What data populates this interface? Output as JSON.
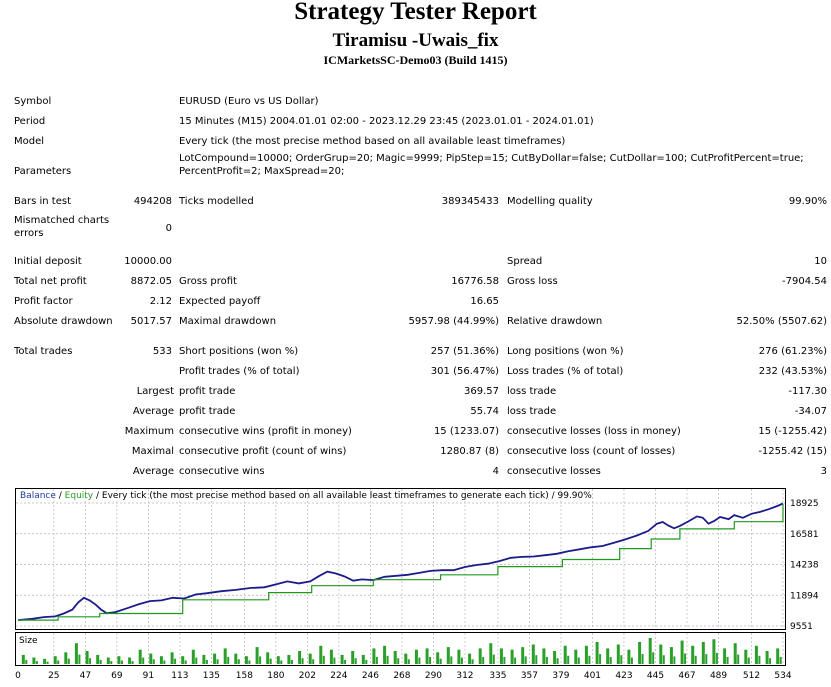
{
  "report": {
    "title": "Strategy Tester Report",
    "ea_name": "Tiramisu -Uwais_fix",
    "server": "ICMarketsSC-Demo03 (Build 1415)"
  },
  "summary": {
    "symbol": {
      "label": "Symbol",
      "value": "EURUSD (Euro vs US Dollar)"
    },
    "period": {
      "label": "Period",
      "value": "15 Minutes (M15) 2004.01.01 02:00 - 2023.12.29 23:45 (2023.01.01 - 2024.01.01)"
    },
    "model": {
      "label": "Model",
      "value": "Every tick (the most precise method based on all available least timeframes)"
    },
    "parameters": {
      "label": "Parameters",
      "line1": "LotCompound=10000; OrderGrup=20; Magic=9999; PipStep=15; CutByDollar=false; CutDollar=100; CutProfitPercent=true;",
      "line2": "PercentProfit=2; MaxSpread=20;"
    },
    "bars_in_test": {
      "label": "Bars in test",
      "value": "494208"
    },
    "ticks_modelled": {
      "label": "Ticks modelled",
      "value": "389345433"
    },
    "modelling_quality": {
      "label": "Modelling quality",
      "value": "99.90%"
    },
    "mismatched": {
      "label1": "Mismatched charts",
      "label2": "errors",
      "value": "0"
    }
  },
  "results": {
    "initial_deposit": {
      "label": "Initial deposit",
      "value": "10000.00"
    },
    "spread": {
      "label": "Spread",
      "value": "10"
    },
    "total_net_profit": {
      "label": "Total net profit",
      "value": "8872.05"
    },
    "gross_profit": {
      "label": "Gross profit",
      "value": "16776.58"
    },
    "gross_loss": {
      "label": "Gross loss",
      "value": "-7904.54"
    },
    "profit_factor": {
      "label": "Profit factor",
      "value": "2.12"
    },
    "expected_payoff": {
      "label": "Expected payoff",
      "value": "16.65"
    },
    "absolute_drawdown": {
      "label": "Absolute drawdown",
      "value": "5017.57"
    },
    "maximal_drawdown": {
      "label": "Maximal drawdown",
      "value": "5957.98 (44.99%)"
    },
    "relative_drawdown": {
      "label": "Relative drawdown",
      "value": "52.50% (5507.62)"
    }
  },
  "trades": {
    "total_trades": {
      "label": "Total trades",
      "value": "533"
    },
    "short_positions": {
      "label": "Short positions (won %)",
      "value": "257 (51.36%)"
    },
    "long_positions": {
      "label": "Long positions (won %)",
      "value": "276 (61.23%)"
    },
    "profit_trades": {
      "label": "Profit trades (% of total)",
      "value": "301 (56.47%)"
    },
    "loss_trades": {
      "label": "Loss trades (% of total)",
      "value": "232 (43.53%)"
    },
    "largest": {
      "prefix": "Largest",
      "profit_label": "profit trade",
      "profit_value": "369.57",
      "loss_label": "loss trade",
      "loss_value": "-117.30"
    },
    "average": {
      "prefix": "Average",
      "profit_label": "profit trade",
      "profit_value": "55.74",
      "loss_label": "loss trade",
      "loss_value": "-34.07"
    },
    "maximum": {
      "prefix": "Maximum",
      "wins_label": "consecutive wins (profit in money)",
      "wins_value": "15 (1233.07)",
      "losses_label": "consecutive losses (loss in money)",
      "losses_value": "15 (-1255.42)"
    },
    "maximal": {
      "prefix": "Maximal",
      "wins_label": "consecutive profit (count of wins)",
      "wins_value": "1280.87 (8)",
      "losses_label": "consecutive loss (count of losses)",
      "losses_value": "-1255.42 (15)"
    },
    "average_consec": {
      "prefix": "Average",
      "wins_label": "consecutive wins",
      "wins_value": "4",
      "losses_label": "consecutive losses",
      "losses_value": "3"
    }
  },
  "chart_data": {
    "type": "line",
    "legend": {
      "balance": "Balance",
      "sep1": " / ",
      "equity": "Equity",
      "rest": " / Every tick (the most precise method based on all available least timeframes to generate each tick) / 99.90%"
    },
    "x_ticks": [
      0,
      25,
      47,
      69,
      91,
      113,
      135,
      158,
      180,
      202,
      224,
      246,
      268,
      290,
      312,
      335,
      357,
      379,
      401,
      423,
      445,
      467,
      489,
      512,
      534
    ],
    "y_ticks": [
      18925,
      16581,
      14238,
      11894,
      9551
    ],
    "ylim": [
      9551,
      18925
    ],
    "xlim": [
      0,
      534
    ],
    "balance_steps": [
      [
        0,
        10000
      ],
      [
        28,
        10250
      ],
      [
        57,
        10500
      ],
      [
        115,
        11550
      ],
      [
        175,
        12100
      ],
      [
        205,
        12620
      ],
      [
        248,
        13080
      ],
      [
        295,
        13450
      ],
      [
        335,
        14080
      ],
      [
        380,
        14620
      ],
      [
        420,
        15450
      ],
      [
        442,
        16180
      ],
      [
        462,
        16950
      ],
      [
        500,
        17500
      ],
      [
        534,
        18870
      ]
    ],
    "equity": [
      [
        0,
        10000
      ],
      [
        10,
        10100
      ],
      [
        18,
        10230
      ],
      [
        26,
        10280
      ],
      [
        32,
        10500
      ],
      [
        38,
        10800
      ],
      [
        42,
        11350
      ],
      [
        46,
        11700
      ],
      [
        50,
        11500
      ],
      [
        54,
        11200
      ],
      [
        58,
        10800
      ],
      [
        62,
        10520
      ],
      [
        68,
        10610
      ],
      [
        76,
        10900
      ],
      [
        84,
        11200
      ],
      [
        92,
        11450
      ],
      [
        100,
        11500
      ],
      [
        108,
        11700
      ],
      [
        116,
        11650
      ],
      [
        124,
        11950
      ],
      [
        132,
        12050
      ],
      [
        142,
        12200
      ],
      [
        152,
        12300
      ],
      [
        162,
        12450
      ],
      [
        172,
        12500
      ],
      [
        180,
        12720
      ],
      [
        188,
        12950
      ],
      [
        196,
        12800
      ],
      [
        204,
        12950
      ],
      [
        210,
        13350
      ],
      [
        216,
        13700
      ],
      [
        222,
        13550
      ],
      [
        228,
        13320
      ],
      [
        234,
        13000
      ],
      [
        240,
        13100
      ],
      [
        248,
        13050
      ],
      [
        256,
        13300
      ],
      [
        264,
        13380
      ],
      [
        272,
        13450
      ],
      [
        280,
        13600
      ],
      [
        288,
        13750
      ],
      [
        296,
        13800
      ],
      [
        304,
        13800
      ],
      [
        312,
        14050
      ],
      [
        320,
        14200
      ],
      [
        328,
        14300
      ],
      [
        336,
        14500
      ],
      [
        344,
        14750
      ],
      [
        352,
        14820
      ],
      [
        360,
        14850
      ],
      [
        368,
        14950
      ],
      [
        376,
        15050
      ],
      [
        384,
        15250
      ],
      [
        392,
        15400
      ],
      [
        400,
        15550
      ],
      [
        408,
        15650
      ],
      [
        416,
        15900
      ],
      [
        424,
        16150
      ],
      [
        432,
        16450
      ],
      [
        440,
        16800
      ],
      [
        446,
        17350
      ],
      [
        450,
        17480
      ],
      [
        454,
        17200
      ],
      [
        458,
        17000
      ],
      [
        462,
        17180
      ],
      [
        468,
        17520
      ],
      [
        474,
        17900
      ],
      [
        478,
        17800
      ],
      [
        482,
        17350
      ],
      [
        486,
        17550
      ],
      [
        490,
        17860
      ],
      [
        496,
        17700
      ],
      [
        500,
        18000
      ],
      [
        506,
        17800
      ],
      [
        512,
        18100
      ],
      [
        518,
        18250
      ],
      [
        524,
        18450
      ],
      [
        530,
        18700
      ],
      [
        534,
        18880
      ]
    ],
    "size_label": "Size",
    "size_bars": [
      0.35,
      0.25,
      0.2,
      0.3,
      0.45,
      0.8,
      0.5,
      0.35,
      0.25,
      0.3,
      0.25,
      0.55,
      0.4,
      0.3,
      0.45,
      0.3,
      0.55,
      0.35,
      0.4,
      0.6,
      0.4,
      0.3,
      0.65,
      0.45,
      0.3,
      0.35,
      0.5,
      0.4,
      0.7,
      0.55,
      0.35,
      0.5,
      0.35,
      0.6,
      0.7,
      0.5,
      0.4,
      0.55,
      0.6,
      0.45,
      0.65,
      0.55,
      0.4,
      0.6,
      0.8,
      0.6,
      0.55,
      0.65,
      0.75,
      0.6,
      0.5,
      0.7,
      0.55,
      0.7,
      0.85,
      0.6,
      0.75,
      0.55,
      0.85,
      1.0,
      0.75,
      0.65,
      0.9,
      0.7,
      0.85,
      0.95,
      0.6,
      0.8,
      0.55,
      0.7,
      0.5,
      0.6
    ]
  }
}
